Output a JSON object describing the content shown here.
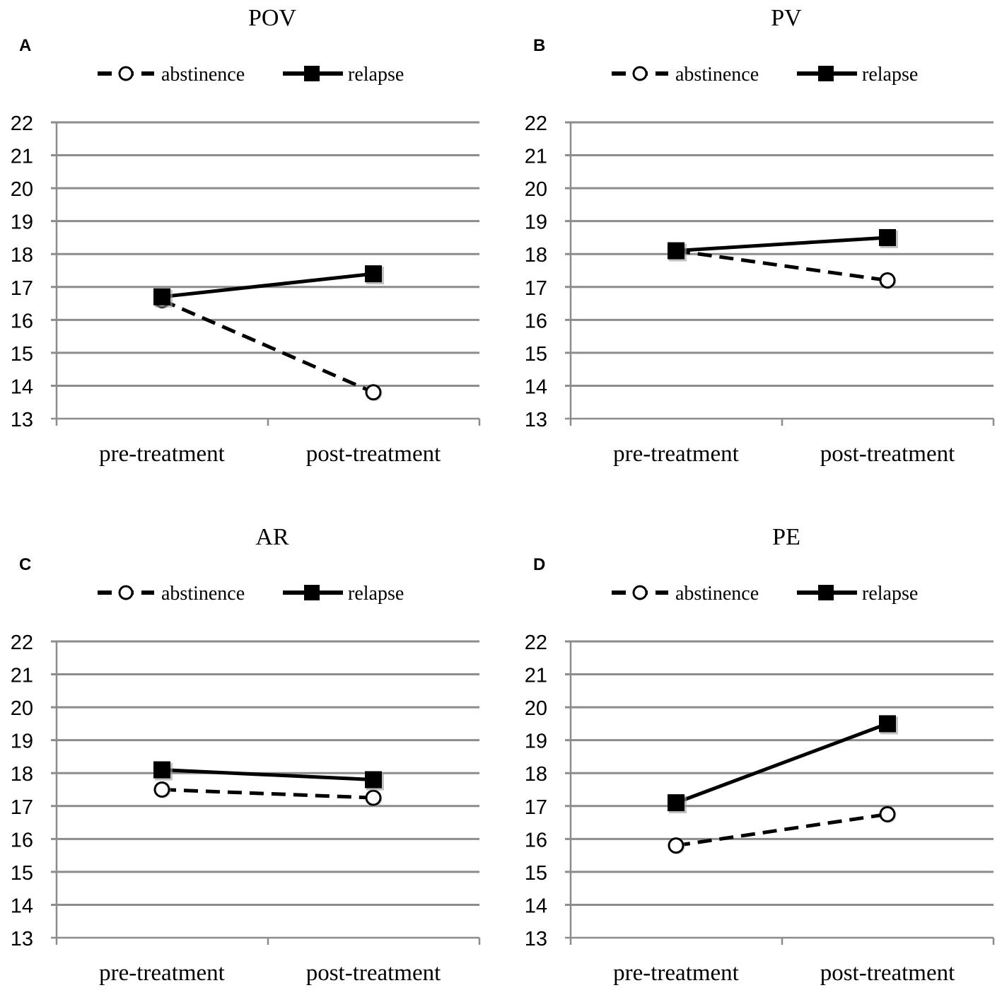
{
  "legend": {
    "abstinence": "abstinence",
    "relapse": "relapse"
  },
  "chart_data": [
    {
      "type": "line",
      "panel": "A",
      "title": "POV",
      "categories": [
        "pre-treatment",
        "post-treatment"
      ],
      "ylim": [
        13,
        22
      ],
      "yticks": [
        "13",
        "14",
        "15",
        "16",
        "17",
        "18",
        "19",
        "20",
        "21",
        "22"
      ],
      "grid": true,
      "legend_position": "top",
      "series": [
        {
          "name": "abstinence",
          "style": "dashed-open-circle",
          "values": [
            16.6,
            13.8
          ]
        },
        {
          "name": "relapse",
          "style": "solid-filled-square",
          "values": [
            16.7,
            17.4
          ]
        }
      ]
    },
    {
      "type": "line",
      "panel": "B",
      "title": "PV",
      "categories": [
        "pre-treatment",
        "post-treatment"
      ],
      "ylim": [
        13,
        22
      ],
      "yticks": [
        "13",
        "14",
        "15",
        "16",
        "17",
        "18",
        "19",
        "20",
        "21",
        "22"
      ],
      "grid": true,
      "legend_position": "top",
      "series": [
        {
          "name": "abstinence",
          "style": "dashed-open-circle",
          "values": [
            18.1,
            17.2
          ]
        },
        {
          "name": "relapse",
          "style": "solid-filled-square",
          "values": [
            18.1,
            18.5
          ]
        }
      ]
    },
    {
      "type": "line",
      "panel": "C",
      "title": "AR",
      "categories": [
        "pre-treatment",
        "post-treatment"
      ],
      "ylim": [
        13,
        22
      ],
      "yticks": [
        "13",
        "14",
        "15",
        "16",
        "17",
        "18",
        "19",
        "20",
        "21",
        "22"
      ],
      "grid": true,
      "legend_position": "top",
      "series": [
        {
          "name": "abstinence",
          "style": "dashed-open-circle",
          "values": [
            17.5,
            17.25
          ]
        },
        {
          "name": "relapse",
          "style": "solid-filled-square",
          "values": [
            18.1,
            17.8
          ]
        }
      ]
    },
    {
      "type": "line",
      "panel": "D",
      "title": "PE",
      "categories": [
        "pre-treatment",
        "post-treatment"
      ],
      "ylim": [
        13,
        22
      ],
      "yticks": [
        "13",
        "14",
        "15",
        "16",
        "17",
        "18",
        "19",
        "20",
        "21",
        "22"
      ],
      "grid": true,
      "legend_position": "top",
      "series": [
        {
          "name": "abstinence",
          "style": "dashed-open-circle",
          "values": [
            15.8,
            16.75
          ]
        },
        {
          "name": "relapse",
          "style": "solid-filled-square",
          "values": [
            17.1,
            19.5
          ]
        }
      ]
    }
  ]
}
